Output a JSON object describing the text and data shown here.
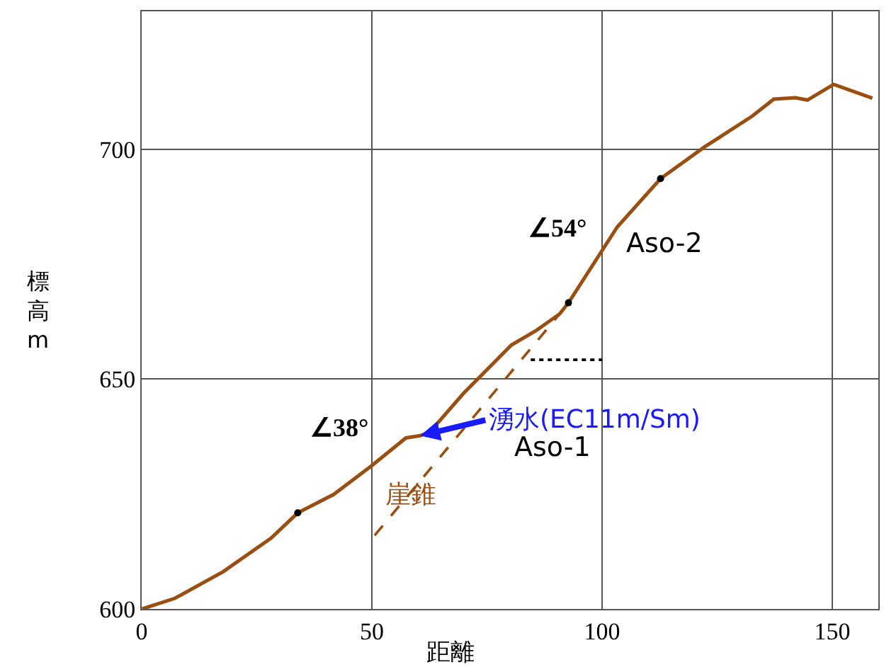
{
  "chart_data": {
    "type": "line",
    "xlabel": "距離",
    "ylabel": "標高m",
    "xlim": [
      0,
      160
    ],
    "ylim": [
      600,
      730
    ],
    "xticks": [
      0,
      50,
      100,
      150
    ],
    "yticks": [
      600,
      650,
      700
    ],
    "grid": true,
    "series": [
      {
        "color": "#9a4f12",
        "line_style": "solid",
        "marker": "none",
        "x": [
          0.1,
          7.2,
          17.7,
          28.1,
          33.9,
          41.7,
          50.0,
          57.4,
          60.5,
          62.6,
          69.9,
          80.3,
          85.6,
          90.8,
          92.7,
          103.3,
          112.7,
          122.1,
          132.6,
          137.3,
          142.0,
          144.6,
          150.3,
          158.7
        ],
        "values": [
          600,
          602.3,
          608.1,
          615.4,
          620.9,
          624.9,
          631.2,
          637.2,
          637.7,
          638.5,
          646.9,
          657.4,
          660.5,
          664.2,
          666.6,
          683.1,
          693.6,
          700.4,
          707.2,
          710.9,
          711.2,
          710.7,
          714.1,
          711.1
        ]
      },
      {
        "type": "line",
        "color": "#9a4f12",
        "line_style": "dashed",
        "marker": "none",
        "x": [
          50.6,
          90.8
        ],
        "values": [
          616.0,
          664.2
        ]
      },
      {
        "type": "line",
        "color": "#000000",
        "line_style": "dotted",
        "marker": "none",
        "x": [
          84.5,
          100
        ],
        "values": [
          654.2,
          654.2
        ]
      },
      {
        "type": "scatter",
        "color": "#000000",
        "marker": "circle",
        "x": [
          33.9,
          92.7,
          112.7
        ],
        "values": [
          620.9,
          666.6,
          693.6
        ]
      }
    ],
    "annotations": [
      "∠38°",
      "∠54°",
      "Aso-2",
      "Aso-1",
      "崖錐",
      {
        "text": "湧水(EC11m/Sm)",
        "x": 60.5,
        "y": 637.7
      }
    ]
  }
}
